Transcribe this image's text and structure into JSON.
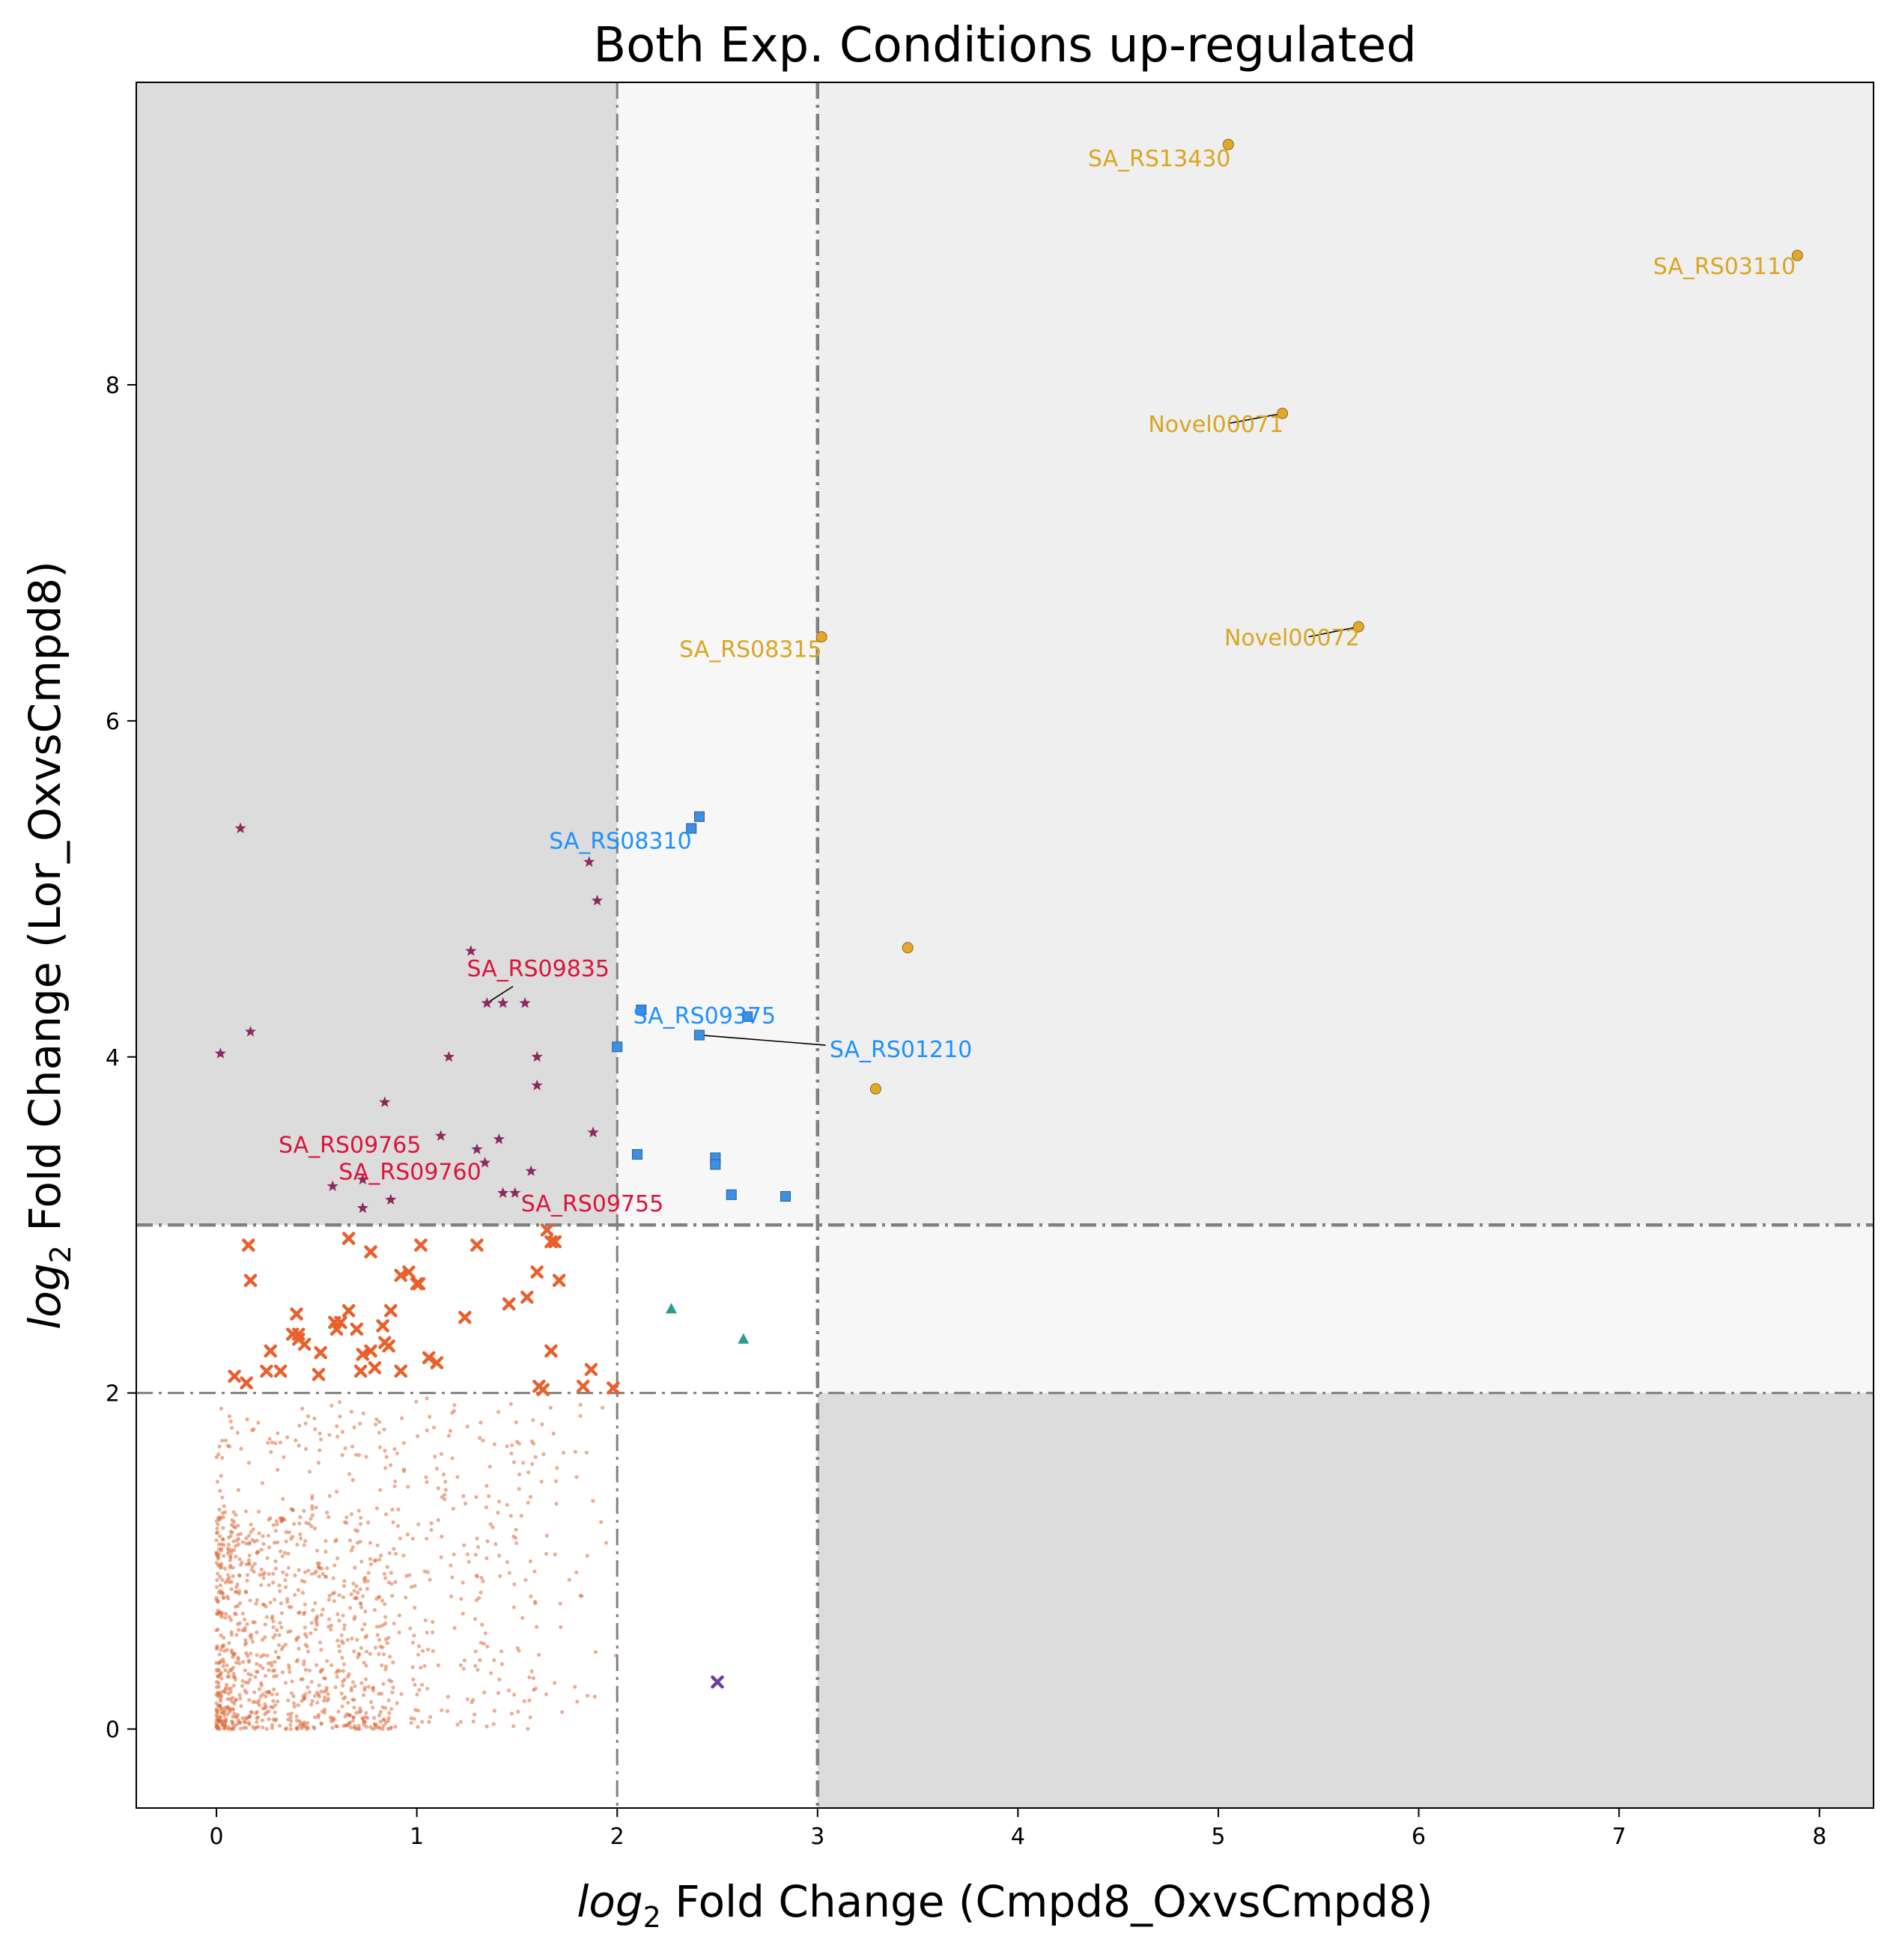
{
  "chart_data": {
    "type": "scatter",
    "title": "Both Exp. Conditions up-regulated",
    "xlabel_math": "log",
    "xlabel_sub": "2",
    "xlabel_rest": " Fold Change (Cmpd8_OxvsCmpd8)",
    "ylabel_math": "log",
    "ylabel_sub": "2",
    "ylabel_rest": " Fold Change (Lor_OxvsCmpd8)",
    "xlim": [
      -0.4,
      8.27
    ],
    "ylim": [
      -0.47,
      9.8
    ],
    "xticks": [
      0,
      1,
      2,
      3,
      4,
      5,
      6,
      7,
      8
    ],
    "yticks": [
      0,
      2,
      4,
      6,
      8
    ],
    "grid": false,
    "thresholds": {
      "x": [
        2,
        3
      ],
      "y": [
        2,
        3
      ]
    },
    "region_colors": {
      "dark": "#dcdcdc",
      "light": "#efefef",
      "lighter": "#f7f7f7"
    },
    "colors": {
      "gold": "#e3a82a",
      "gold_label": "#daa520",
      "blue": "#3d8fe0",
      "blue_label": "#1e90ff",
      "crimson": "#dc143c",
      "star": "#8b2a5c",
      "cross": "#e8602c",
      "dot": "#dd6b3c",
      "teal": "#2a9d8f",
      "purple": "#6a3d9a",
      "threshold_line": "#808080"
    },
    "series": [
      {
        "marker": "circle",
        "color_key": "gold",
        "x": [
          5.05,
          7.89,
          5.32,
          3.02,
          5.7,
          3.45,
          3.29
        ],
        "y": [
          9.43,
          8.77,
          7.83,
          6.5,
          6.56,
          4.65,
          3.81
        ]
      },
      {
        "marker": "square",
        "color_key": "blue",
        "x": [
          2.41,
          2.37,
          2.12,
          2.41,
          2.65,
          2.0,
          2.1,
          2.49,
          2.49,
          2.57,
          2.84
        ],
        "y": [
          5.43,
          5.36,
          4.28,
          4.13,
          4.24,
          4.06,
          3.42,
          3.4,
          3.36,
          3.18,
          3.17
        ]
      },
      {
        "marker": "star",
        "color_key": "star",
        "x": [
          0.12,
          1.86,
          1.9,
          1.27,
          1.35,
          1.43,
          1.54,
          0.17,
          0.02,
          1.16,
          1.6,
          1.6,
          0.84,
          1.12,
          1.3,
          1.41,
          1.88,
          1.34,
          1.57,
          0.58,
          0.73,
          0.87,
          1.43,
          1.49,
          0.73
        ],
        "y": [
          5.36,
          5.16,
          4.93,
          4.63,
          4.32,
          4.32,
          4.32,
          4.15,
          4.02,
          4.0,
          4.0,
          3.83,
          3.73,
          3.53,
          3.45,
          3.51,
          3.55,
          3.37,
          3.32,
          3.23,
          3.27,
          3.15,
          3.19,
          3.19,
          3.1
        ]
      },
      {
        "marker": "cross",
        "color_key": "cross",
        "x": [
          0.16,
          0.66,
          0.77,
          0.96,
          1.01,
          1.3,
          1.65,
          1.69,
          0.17,
          0.92,
          1.0,
          1.02,
          1.46,
          1.55,
          1.6,
          1.71,
          0.4,
          0.41,
          0.38,
          0.59,
          0.66,
          0.87,
          1.24,
          0.7,
          0.41,
          0.44,
          0.77,
          0.86,
          0.84,
          1.06,
          1.1,
          0.27,
          0.32,
          0.51,
          0.72,
          0.79,
          0.73,
          0.92,
          1.67,
          1.87,
          1.61,
          1.63,
          0.15,
          0.25,
          0.52,
          1.83,
          1.98,
          0.6,
          0.62,
          0.83,
          1.67,
          0.09
        ],
        "y": [
          2.88,
          2.92,
          2.84,
          2.72,
          2.65,
          2.88,
          2.97,
          2.9,
          2.67,
          2.7,
          2.65,
          2.88,
          2.53,
          2.57,
          2.72,
          2.67,
          2.47,
          2.35,
          2.35,
          2.42,
          2.49,
          2.49,
          2.45,
          2.38,
          2.32,
          2.29,
          2.25,
          2.28,
          2.3,
          2.21,
          2.18,
          2.25,
          2.13,
          2.11,
          2.13,
          2.15,
          2.23,
          2.13,
          2.25,
          2.14,
          2.04,
          2.02,
          2.06,
          2.13,
          2.24,
          2.04,
          2.03,
          2.38,
          2.42,
          2.4,
          2.9,
          2.1
        ]
      },
      {
        "marker": "triangle",
        "color_key": "teal",
        "x": [
          2.27,
          2.63
        ],
        "y": [
          2.5,
          2.32
        ]
      },
      {
        "marker": "cross",
        "color_key": "purple",
        "x": [
          2.5
        ],
        "y": [
          0.28
        ]
      }
    ],
    "background_points_description_free": true,
    "annotations": [
      {
        "text": "SA_RS13430",
        "color_key": "gold_label",
        "x": 5.05,
        "y": 9.43,
        "tx": 4.35,
        "ty": 9.3,
        "leader": false
      },
      {
        "text": "SA_RS03110",
        "color_key": "gold_label",
        "x": 7.89,
        "y": 8.77,
        "tx": 7.17,
        "ty": 8.66,
        "leader": false
      },
      {
        "text": "Novel00071",
        "color_key": "gold_label",
        "x": 5.32,
        "y": 7.83,
        "tx": 4.65,
        "ty": 7.72,
        "leader": true,
        "lx": 5.05,
        "ly": 7.77
      },
      {
        "text": "SA_RS08315",
        "color_key": "gold_label",
        "x": 3.02,
        "y": 6.5,
        "tx": 2.31,
        "ty": 6.38,
        "leader": false
      },
      {
        "text": "Novel00072",
        "color_key": "gold_label",
        "x": 5.7,
        "y": 6.56,
        "tx": 5.03,
        "ty": 6.45,
        "leader": true,
        "lx": 5.45,
        "ly": 6.5
      },
      {
        "text": "SA_RS08310",
        "color_key": "blue_label",
        "x": 2.37,
        "y": 5.36,
        "tx": 1.66,
        "ty": 5.24,
        "leader": false
      },
      {
        "text": "SA_RS09375",
        "color_key": "blue_label",
        "x": 2.12,
        "y": 4.28,
        "tx": 2.08,
        "ty": 4.2,
        "leader": false
      },
      {
        "text": "SA_RS01210",
        "color_key": "blue_label",
        "x": 2.41,
        "y": 4.13,
        "tx": 3.06,
        "ty": 4.0,
        "leader": true,
        "lx": 3.04,
        "ly": 4.07
      },
      {
        "text": "SA_RS09835",
        "color_key": "crimson",
        "x": 1.35,
        "y": 4.32,
        "tx": 1.25,
        "ty": 4.48,
        "leader": true,
        "lx": 1.48,
        "ly": 4.42
      },
      {
        "text": "SA_RS09765",
        "color_key": "crimson",
        "x": 1.12,
        "y": 3.53,
        "tx": 0.31,
        "ty": 3.43,
        "leader": false
      },
      {
        "text": "SA_RS09760",
        "color_key": "crimson",
        "x": 1.34,
        "y": 3.37,
        "tx": 0.61,
        "ty": 3.27,
        "leader": false
      },
      {
        "text": "SA_RS09755",
        "color_key": "crimson",
        "x": 1.49,
        "y": 3.19,
        "tx": 1.52,
        "ty": 3.08,
        "leader": false
      }
    ]
  }
}
